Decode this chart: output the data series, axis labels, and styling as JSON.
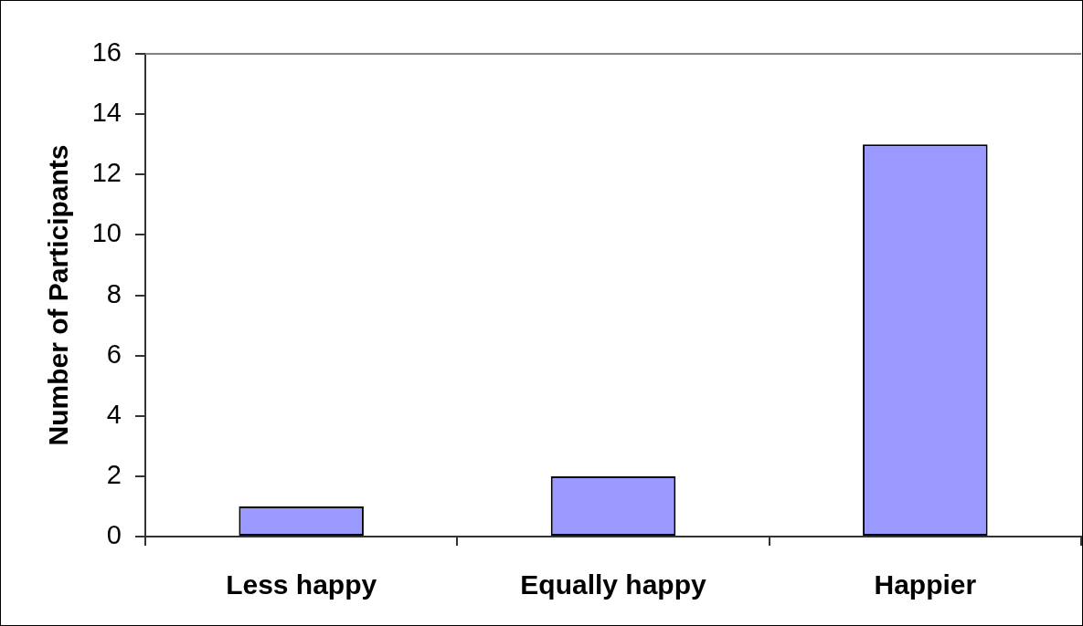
{
  "chart_data": {
    "type": "bar",
    "ylabel": "Number of Participants",
    "categories": [
      "Less happy",
      "Equally happy",
      "Happier"
    ],
    "values": [
      1,
      2,
      13
    ],
    "color": "#9999ff",
    "ylim": [
      0,
      16
    ],
    "yticks": [
      0,
      2,
      4,
      6,
      8,
      10,
      12,
      14,
      16
    ]
  }
}
